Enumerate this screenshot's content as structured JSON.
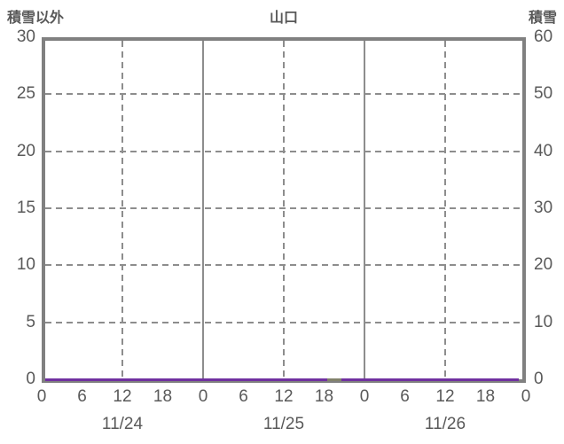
{
  "header": {
    "left_axis_title": "積雪以外",
    "chart_title": "山口",
    "right_axis_title": "積雪"
  },
  "colors": {
    "text": "#595959",
    "plot_border": "#808080",
    "gridline": "#8d8d8d",
    "series_non_snow": "#7030a0",
    "series_snow": "#82826b",
    "background": "#ffffff"
  },
  "chart_data": {
    "type": "line",
    "title": "山口",
    "left_axis": {
      "title": "積雪以外",
      "min": 0,
      "max": 30,
      "tick_step": 5,
      "tick_labels": [
        "30",
        "25",
        "20",
        "15",
        "10",
        "5",
        "0"
      ]
    },
    "right_axis": {
      "title": "積雪",
      "min": 0,
      "max": 60,
      "tick_step": 10,
      "tick_labels": [
        "60",
        "50",
        "40",
        "30",
        "20",
        "10",
        "0"
      ]
    },
    "x_axis": {
      "min_hour": 0,
      "max_hour": 72,
      "tick_step_hours": 6,
      "hour_tick_labels": [
        "0",
        "6",
        "12",
        "18",
        "0",
        "6",
        "12",
        "18",
        "0",
        "6",
        "12",
        "18",
        "0"
      ],
      "day_labels": [
        "11/24",
        "11/25",
        "11/26"
      ],
      "day_label_center_hours": [
        12,
        36,
        60
      ],
      "dashed_gridline_hours": [
        12,
        36,
        60
      ],
      "solid_gridline_hours": [
        24,
        48
      ],
      "dashed_value_gridlines": [
        5,
        10,
        15,
        20,
        25
      ],
      "grid": true
    },
    "legend_position": "none",
    "series": [
      {
        "name": "積雪以外",
        "axis": "left",
        "color": "#7030a0",
        "segments": [
          {
            "from_hour": 0,
            "to_hour": 42.4,
            "value": 0
          },
          {
            "from_hour": 44.6,
            "to_hour": 71,
            "value": 0
          }
        ]
      },
      {
        "name": "積雪",
        "axis": "right",
        "color": "#82826b",
        "segments": [
          {
            "from_hour": 42.4,
            "to_hour": 44.6,
            "value": 0
          }
        ]
      }
    ]
  }
}
